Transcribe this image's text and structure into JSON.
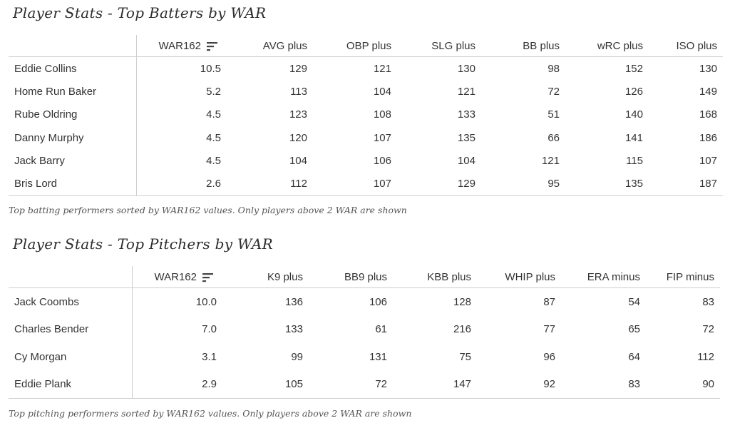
{
  "batters": {
    "title": "Player Stats - Top Batters by WAR",
    "columns": [
      "WAR162",
      "AVG plus",
      "OBP plus",
      "SLG plus",
      "BB plus",
      "wRC plus",
      "ISO plus"
    ],
    "rows": [
      {
        "name": "Eddie Collins",
        "values": [
          "10.5",
          "129",
          "121",
          "130",
          "98",
          "152",
          "130"
        ]
      },
      {
        "name": "Home Run Baker",
        "values": [
          "5.2",
          "113",
          "104",
          "121",
          "72",
          "126",
          "149"
        ]
      },
      {
        "name": "Rube Oldring",
        "values": [
          "4.5",
          "123",
          "108",
          "133",
          "51",
          "140",
          "168"
        ]
      },
      {
        "name": "Danny Murphy",
        "values": [
          "4.5",
          "120",
          "107",
          "135",
          "66",
          "141",
          "186"
        ]
      },
      {
        "name": "Jack Barry",
        "values": [
          "4.5",
          "104",
          "106",
          "104",
          "121",
          "115",
          "107"
        ]
      },
      {
        "name": "Bris Lord",
        "values": [
          "2.6",
          "112",
          "107",
          "129",
          "95",
          "135",
          "187"
        ]
      }
    ],
    "note": "Top batting performers sorted by WAR162 values. Only players above 2 WAR are shown"
  },
  "pitchers": {
    "title": "Player Stats - Top Pitchers by WAR",
    "columns": [
      "WAR162",
      "K9 plus",
      "BB9 plus",
      "KBB plus",
      "WHIP plus",
      "ERA minus",
      "FIP minus"
    ],
    "rows": [
      {
        "name": "Jack Coombs",
        "values": [
          "10.0",
          "136",
          "106",
          "128",
          "87",
          "54",
          "83"
        ]
      },
      {
        "name": "Charles Bender",
        "values": [
          "7.0",
          "133",
          "61",
          "216",
          "77",
          "65",
          "72"
        ]
      },
      {
        "name": "Cy Morgan",
        "values": [
          "3.1",
          "99",
          "131",
          "75",
          "96",
          "64",
          "112"
        ]
      },
      {
        "name": "Eddie Plank",
        "values": [
          "2.9",
          "105",
          "72",
          "147",
          "92",
          "83",
          "90"
        ]
      }
    ],
    "note": "Top pitching performers sorted by WAR162 values. Only players above 2 WAR are shown"
  },
  "icons": {
    "sort": "sort-descending-icon"
  }
}
